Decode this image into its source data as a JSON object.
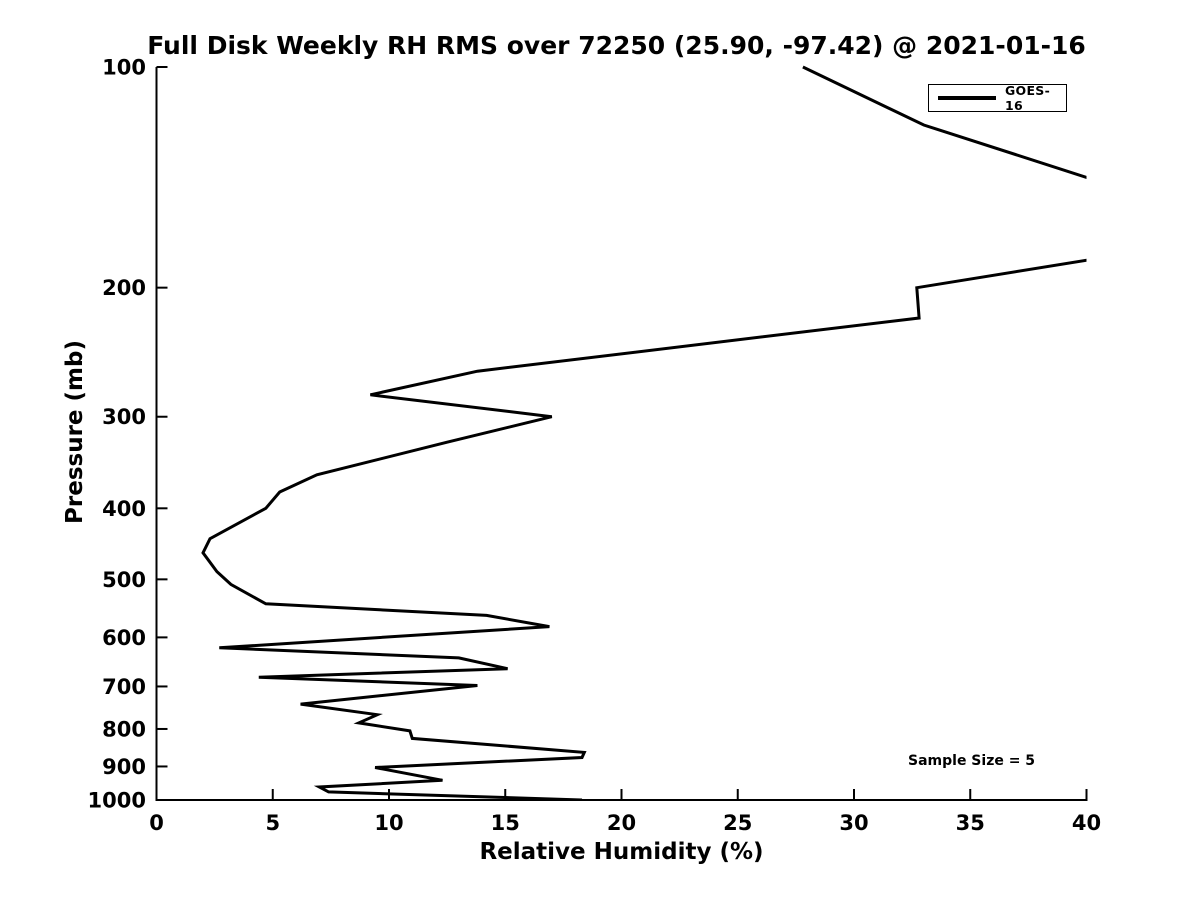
{
  "figure": {
    "title": "Full Disk Weekly RH RMS over 72250 (25.90, -97.42) @ 2021-01-16",
    "x_axis_label": "Relative Humidity (%)",
    "y_axis_label": "Pressure (mb)",
    "legend": {
      "position": "upper right",
      "entries": [
        {
          "label": "GOES-16",
          "line_color": "#000000"
        }
      ]
    },
    "annotation_text": "Sample Size = 5"
  },
  "colors": {
    "background": "#ffffff",
    "line": "#000000",
    "axis": "#000000",
    "text": "#000000"
  },
  "chart_data": {
    "type": "line",
    "title": "Full Disk Weekly RH RMS over 72250 (25.90, -97.42) @ 2021-01-16",
    "xlabel": "Relative Humidity (%)",
    "ylabel": "Pressure (mb)",
    "xlim": [
      0,
      40
    ],
    "ylim": [
      100,
      1000
    ],
    "x_ticks": [
      0,
      5,
      10,
      15,
      20,
      25,
      30,
      35,
      40
    ],
    "y_ticks": [
      100,
      200,
      300,
      400,
      500,
      600,
      700,
      800,
      900,
      1000
    ],
    "y_scale": "log",
    "y_inverted": true,
    "grid": false,
    "legend_position": "upper right",
    "clip_note": "RH values above 40% between ~142 mb and ~184 mb are clipped at the right axis limit",
    "series": [
      {
        "name": "GOES-16",
        "color": "#000000",
        "pressure_mb": [
          100,
          120,
          150,
          182,
          200,
          220,
          260,
          280,
          300,
          325,
          360,
          380,
          400,
          440,
          460,
          488,
          508,
          540,
          560,
          580,
          620,
          640,
          662,
          680,
          698,
          740,
          765,
          785,
          805,
          824,
          861,
          875,
          903,
          940,
          960,
          975,
          1000
        ],
        "rh_percent": [
          27.8,
          33.0,
          42.5,
          40.7,
          32.7,
          32.8,
          13.8,
          9.2,
          17.0,
          12.5,
          6.9,
          5.3,
          4.7,
          2.3,
          2.0,
          2.6,
          3.2,
          4.7,
          14.2,
          16.9,
          2.7,
          13.0,
          15.1,
          4.4,
          13.8,
          6.2,
          9.5,
          8.7,
          10.9,
          11.0,
          18.4,
          18.3,
          9.4,
          12.3,
          7.0,
          7.4,
          18.3
        ]
      }
    ],
    "annotations": [
      {
        "text": "Sample Size = 5",
        "x_rh": 34.8,
        "y_pressure_mb": 890
      }
    ]
  }
}
